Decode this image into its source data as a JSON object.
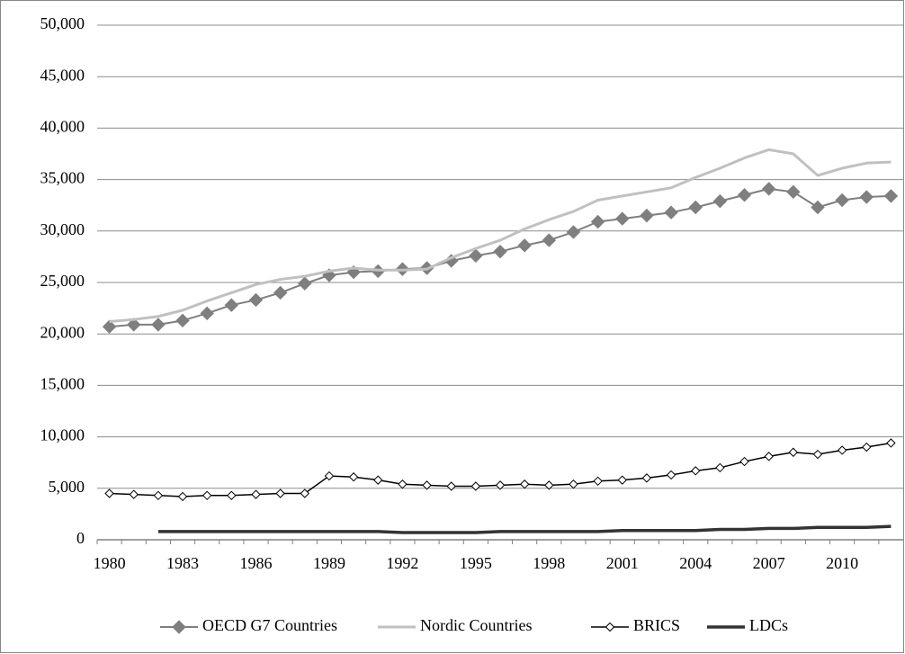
{
  "chart_data": {
    "type": "line",
    "categories": [
      "1980",
      null,
      null,
      "1983",
      null,
      null,
      "1986",
      null,
      null,
      "1989",
      null,
      null,
      "1992",
      null,
      null,
      "1995",
      null,
      null,
      "1998",
      null,
      null,
      "2001",
      null,
      null,
      "2004",
      null,
      null,
      "2007",
      null,
      null,
      "2010",
      null,
      null
    ],
    "series": [
      {
        "name": "OECD G7 Countries",
        "color": "#7f7f7f",
        "marker": "filled-diamond",
        "line_width": 2,
        "values": [
          20700,
          20900,
          20900,
          21300,
          22000,
          22800,
          23300,
          24000,
          24900,
          25700,
          26000,
          26100,
          26300,
          26400,
          27100,
          27600,
          28000,
          28600,
          29100,
          29900,
          30900,
          31200,
          31500,
          31800,
          32300,
          32900,
          33500,
          34100,
          33800,
          32300,
          33000,
          33300,
          33400
        ]
      },
      {
        "name": "Nordic Countries",
        "color": "#c0c0c0",
        "marker": null,
        "line_width": 3,
        "values": [
          21200,
          21400,
          21700,
          22300,
          23200,
          24000,
          24800,
          25300,
          25600,
          26100,
          26400,
          26200,
          26200,
          26300,
          27400,
          28300,
          29100,
          30200,
          31100,
          31900,
          33000,
          33400,
          33800,
          34200,
          35200,
          36100,
          37100,
          37900,
          37500,
          35400,
          36100,
          36600,
          36700
        ]
      },
      {
        "name": "BRICS",
        "color": "#000000",
        "marker": "open-diamond",
        "line_width": 1.5,
        "values": [
          4500,
          4400,
          4300,
          4200,
          4300,
          4300,
          4400,
          4500,
          4500,
          6200,
          6100,
          5800,
          5400,
          5300,
          5200,
          5200,
          5300,
          5400,
          5300,
          5400,
          5700,
          5800,
          6000,
          6300,
          6700,
          7000,
          7600,
          8100,
          8500,
          8300,
          8700,
          9000,
          9400
        ]
      },
      {
        "name": "LDCs",
        "color": "#333333",
        "marker": null,
        "line_width": 3.5,
        "values": [
          null,
          null,
          800,
          800,
          800,
          800,
          800,
          800,
          800,
          800,
          800,
          800,
          700,
          700,
          700,
          700,
          800,
          800,
          800,
          800,
          800,
          900,
          900,
          900,
          900,
          1000,
          1000,
          1100,
          1100,
          1200,
          1200,
          1200,
          1300
        ]
      }
    ],
    "ylim": [
      0,
      50000
    ],
    "yticks": [
      {
        "value": 0,
        "label": "0"
      },
      {
        "value": 5000,
        "label": "5,000"
      },
      {
        "value": 10000,
        "label": "10,000"
      },
      {
        "value": 15000,
        "label": "15,000"
      },
      {
        "value": 20000,
        "label": "20,000"
      },
      {
        "value": 25000,
        "label": "25,000"
      },
      {
        "value": 30000,
        "label": "30,000"
      },
      {
        "value": 35000,
        "label": "35,000"
      },
      {
        "value": 40000,
        "label": "40,000"
      },
      {
        "value": 45000,
        "label": "45,000"
      },
      {
        "value": 50000,
        "label": "50,000"
      }
    ],
    "grid": true,
    "legend": "bottom"
  }
}
